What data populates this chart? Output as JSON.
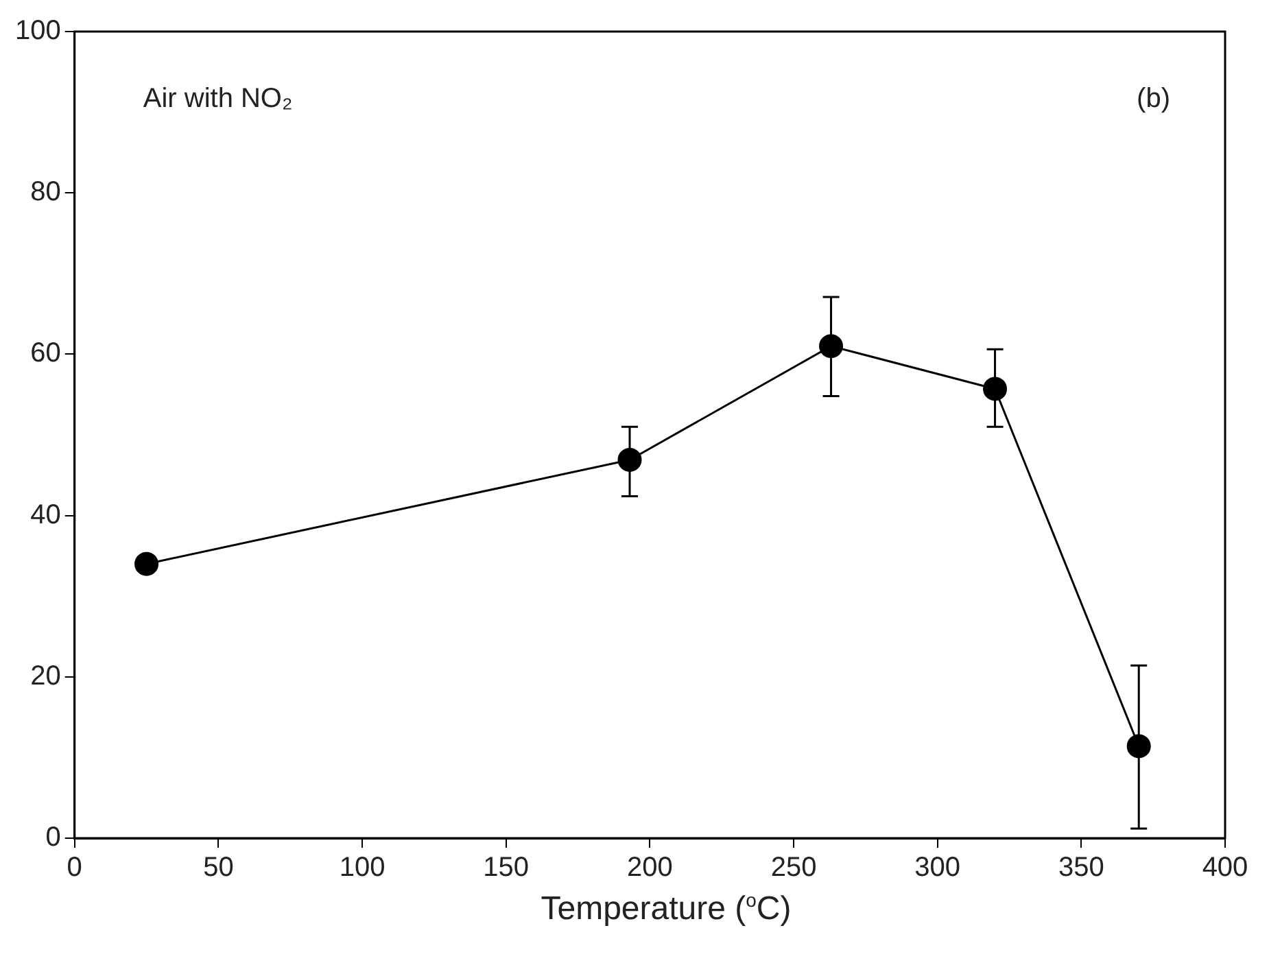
{
  "chart_data": {
    "type": "line",
    "xlabel": "Temperature ($^{o}$C)",
    "annotations": [
      "Air with NO₂",
      "(b)"
    ],
    "x": [
      25,
      193,
      263,
      320,
      370
    ],
    "series": [
      {
        "color": "#000000",
        "values": [
          34,
          46.9,
          61,
          55.7,
          11.4
        ],
        "errors": [
          null,
          [
            42.4,
            51
          ],
          [
            54.8,
            67.1
          ],
          [
            51,
            60.6
          ],
          [
            1.2,
            21.4
          ]
        ]
      }
    ],
    "xlim": [
      0,
      400
    ],
    "xticks": [
      0,
      50,
      100,
      150,
      200,
      250,
      300,
      350,
      400
    ],
    "ylim": [
      0,
      100
    ],
    "yticks": [
      0,
      20,
      40,
      60,
      80,
      100
    ],
    "grid": false,
    "legend": false,
    "marker": "circle",
    "line_style": "solid"
  }
}
